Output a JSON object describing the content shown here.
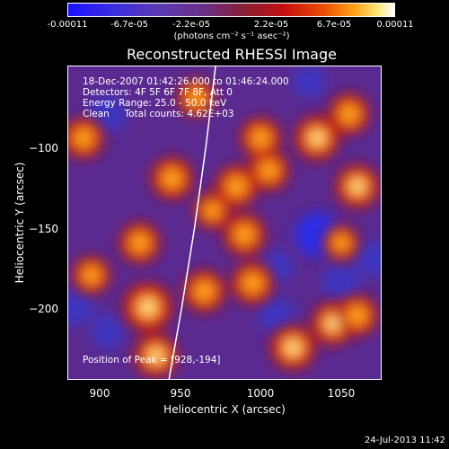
{
  "colorbar": {
    "ticks": [
      "-0.00011",
      "-6.7e-05",
      "-2.2e-05",
      "2.2e-05",
      "6.7e-05",
      "0.00011"
    ],
    "unit_label": "(photons cm⁻² s⁻¹ asec⁻²)"
  },
  "chart_data": {
    "type": "heatmap",
    "title": "Reconstructed RHESSI Image",
    "xlabel": "Heliocentric X (arcsec)",
    "ylabel": "Heliocentric Y (arcsec)",
    "xlim": [
      880,
      1075
    ],
    "ylim": [
      -245,
      -50
    ],
    "xticks": [
      900,
      950,
      1000,
      1050
    ],
    "yticks": [
      -100,
      -150,
      -200
    ],
    "xtick_labels": [
      "900",
      "950",
      "1000",
      "1050"
    ],
    "ytick_labels": [
      "−100",
      "−150",
      "−200"
    ],
    "colorbar_range": [
      -0.00011,
      0.00011
    ],
    "peak": [
      928,
      -194
    ],
    "limb_curve": [
      [
        943,
        -245
      ],
      [
        951,
        -200
      ],
      [
        959,
        -150
      ],
      [
        966,
        -100
      ],
      [
        972,
        -50
      ]
    ],
    "hot_spots": [
      {
        "x": 930,
        "y": -200,
        "level": 1.0
      },
      {
        "x": 935,
        "y": -230,
        "level": 0.8
      },
      {
        "x": 965,
        "y": -190,
        "level": 0.75
      },
      {
        "x": 995,
        "y": -185,
        "level": 0.75
      },
      {
        "x": 1020,
        "y": -225,
        "level": 0.85
      },
      {
        "x": 1045,
        "y": -210,
        "level": 0.8
      },
      {
        "x": 1060,
        "y": -205,
        "level": 0.7
      },
      {
        "x": 1035,
        "y": -95,
        "level": 0.85
      },
      {
        "x": 1060,
        "y": -125,
        "level": 0.8
      },
      {
        "x": 1055,
        "y": -80,
        "level": 0.7
      },
      {
        "x": 1005,
        "y": -115,
        "level": 0.7
      },
      {
        "x": 985,
        "y": -125,
        "level": 0.75
      },
      {
        "x": 990,
        "y": -155,
        "level": 0.75
      },
      {
        "x": 1000,
        "y": -95,
        "level": 0.7
      },
      {
        "x": 945,
        "y": -120,
        "level": 0.75
      },
      {
        "x": 890,
        "y": -95,
        "level": 0.7
      },
      {
        "x": 960,
        "y": -70,
        "level": 0.6
      },
      {
        "x": 925,
        "y": -160,
        "level": 0.7
      },
      {
        "x": 895,
        "y": -180,
        "level": 0.6
      },
      {
        "x": 1050,
        "y": -160,
        "level": 0.5
      },
      {
        "x": 970,
        "y": -140,
        "level": 0.55
      }
    ],
    "cold_spots": [
      {
        "x": 905,
        "y": -80,
        "level": 0.6
      },
      {
        "x": 1035,
        "y": -155,
        "level": 0.8
      },
      {
        "x": 1050,
        "y": -185,
        "level": 0.6
      },
      {
        "x": 885,
        "y": -200,
        "level": 0.55
      },
      {
        "x": 1010,
        "y": -175,
        "level": 0.45
      },
      {
        "x": 1010,
        "y": -205,
        "level": 0.55
      },
      {
        "x": 1070,
        "y": -170,
        "level": 0.55
      },
      {
        "x": 905,
        "y": -215,
        "level": 0.5
      },
      {
        "x": 1030,
        "y": -60,
        "level": 0.45
      }
    ]
  },
  "info": {
    "time_range": "18-Dec-2007 01:42:26.000 to 01:46:24.000",
    "detectors": "Detectors: 4F 5F 6F 7F 8F, Att 0",
    "energy": "Energy Range: 25.0 - 50.0 keV",
    "clean": "Clean     Total counts: 4.62E+03",
    "peak_label": "Position of Peak = [928,-194]"
  },
  "footer": "24-Jul-2013 11:42"
}
